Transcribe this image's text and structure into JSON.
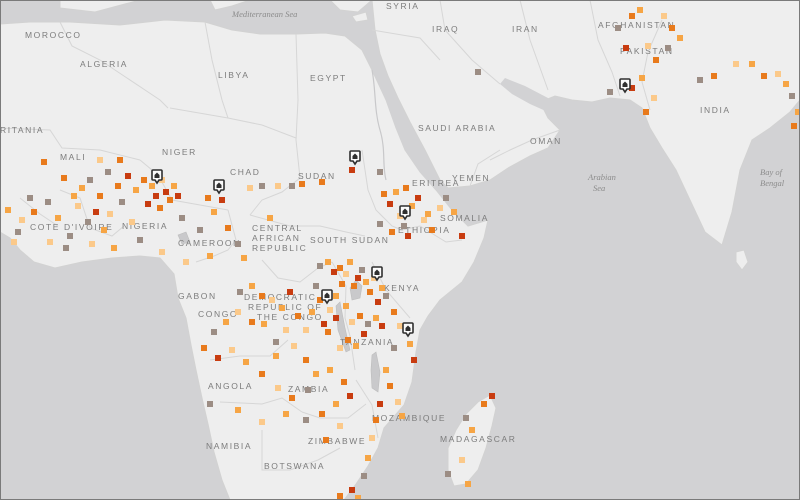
{
  "colors": {
    "ocean": "#d2d2d4",
    "land": "#eeeeee",
    "border": "#d6d6d6",
    "marker_dark": "#c83c10",
    "marker_mid": "#e87a1c",
    "marker_light": "#f6a545",
    "marker_pale": "#fbc98a",
    "marker_gray": "#9c8d84"
  },
  "labels": {
    "seas": [
      {
        "name": "Mediterranean Sea"
      },
      {
        "name": "Arabian"
      },
      {
        "name": "Sea"
      },
      {
        "name": "Bay of"
      },
      {
        "name": "Bengal"
      }
    ],
    "countries": [
      {
        "name": "MOROCCO"
      },
      {
        "name": "ALGERIA"
      },
      {
        "name": "LIBYA"
      },
      {
        "name": "EGYPT"
      },
      {
        "name": "SYRIA"
      },
      {
        "name": "IRAQ"
      },
      {
        "name": "IRAN"
      },
      {
        "name": "AFGHANISTAN"
      },
      {
        "name": "PAKISTAN"
      },
      {
        "name": "INDIA"
      },
      {
        "name": "SAUDI ARABIA"
      },
      {
        "name": "OMAN"
      },
      {
        "name": "YEMEN"
      },
      {
        "name": "RITANIA"
      },
      {
        "name": "MALI"
      },
      {
        "name": "NIGER"
      },
      {
        "name": "CHAD"
      },
      {
        "name": "SUDAN"
      },
      {
        "name": "ERITREA"
      },
      {
        "name": "COTE D'IVOIRE"
      },
      {
        "name": "NIGERIA"
      },
      {
        "name": "CAMEROON"
      },
      {
        "name": "CENTRAL"
      },
      {
        "name": "AFRICAN"
      },
      {
        "name": "REPUBLIC"
      },
      {
        "name": "SOUTH SUDAN"
      },
      {
        "name": "ETHIOPIA"
      },
      {
        "name": "SOMALIA"
      },
      {
        "name": "GABON"
      },
      {
        "name": "CONGO"
      },
      {
        "name": "DEMOCRATIC"
      },
      {
        "name": "REPUBLIC OF"
      },
      {
        "name": "THE CONGO"
      },
      {
        "name": "KENYA"
      },
      {
        "name": "TANZANIA"
      },
      {
        "name": "ANGOLA"
      },
      {
        "name": "ZAMBIA"
      },
      {
        "name": "MOZAMBIQUE"
      },
      {
        "name": "MADAGASCAR"
      },
      {
        "name": "NAMIBIA"
      },
      {
        "name": "ZIMBABWE"
      },
      {
        "name": "BOTSWANA"
      }
    ]
  },
  "pins": [
    {
      "icon": "house-pin-icon"
    },
    {
      "icon": "house-pin-icon"
    },
    {
      "icon": "house-pin-icon"
    },
    {
      "icon": "house-pin-icon"
    },
    {
      "icon": "house-pin-icon"
    },
    {
      "icon": "house-pin-icon"
    },
    {
      "icon": "house-pin-icon"
    },
    {
      "icon": "house-pin-icon"
    },
    {
      "icon": "house-pin-icon"
    }
  ]
}
